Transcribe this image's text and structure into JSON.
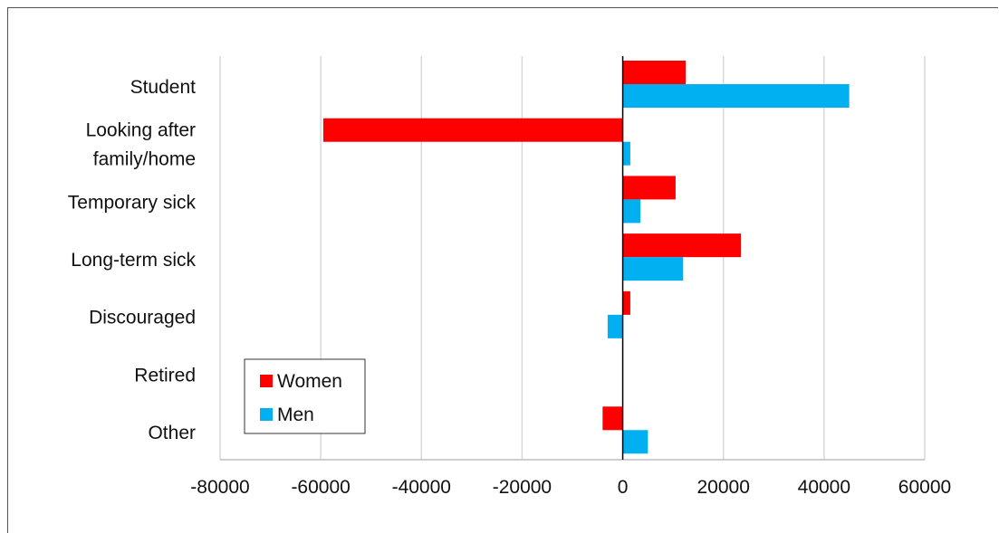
{
  "chart_data": {
    "type": "bar",
    "orientation": "horizontal",
    "categories": [
      "Student",
      "Looking after family/home",
      "Temporary sick",
      "Long-term sick",
      "Discouraged",
      "Retired",
      "Other"
    ],
    "category_lines": [
      [
        "Student"
      ],
      [
        "Looking after",
        "family/home"
      ],
      [
        "Temporary sick"
      ],
      [
        "Long-term sick"
      ],
      [
        "Discouraged"
      ],
      [
        "Retired"
      ],
      [
        "Other"
      ]
    ],
    "series": [
      {
        "name": "Women",
        "color": "#ff0000",
        "values": [
          12500,
          -59500,
          10500,
          23500,
          1500,
          0,
          -4000
        ]
      },
      {
        "name": "Men",
        "color": "#00b0f0",
        "values": [
          45000,
          1500,
          3500,
          12000,
          -3000,
          0,
          5000
        ]
      }
    ],
    "xlim": [
      -80000,
      60000
    ],
    "xticks": [
      "-80000",
      "-60000",
      "-40000",
      "-20000",
      "0",
      "20000",
      "40000",
      "60000"
    ],
    "xtick_values": [
      -80000,
      -60000,
      -40000,
      -20000,
      0,
      20000,
      40000,
      60000
    ],
    "grid": true,
    "legend_position": "bottom-left",
    "title": "",
    "xlabel": "",
    "ylabel": ""
  }
}
